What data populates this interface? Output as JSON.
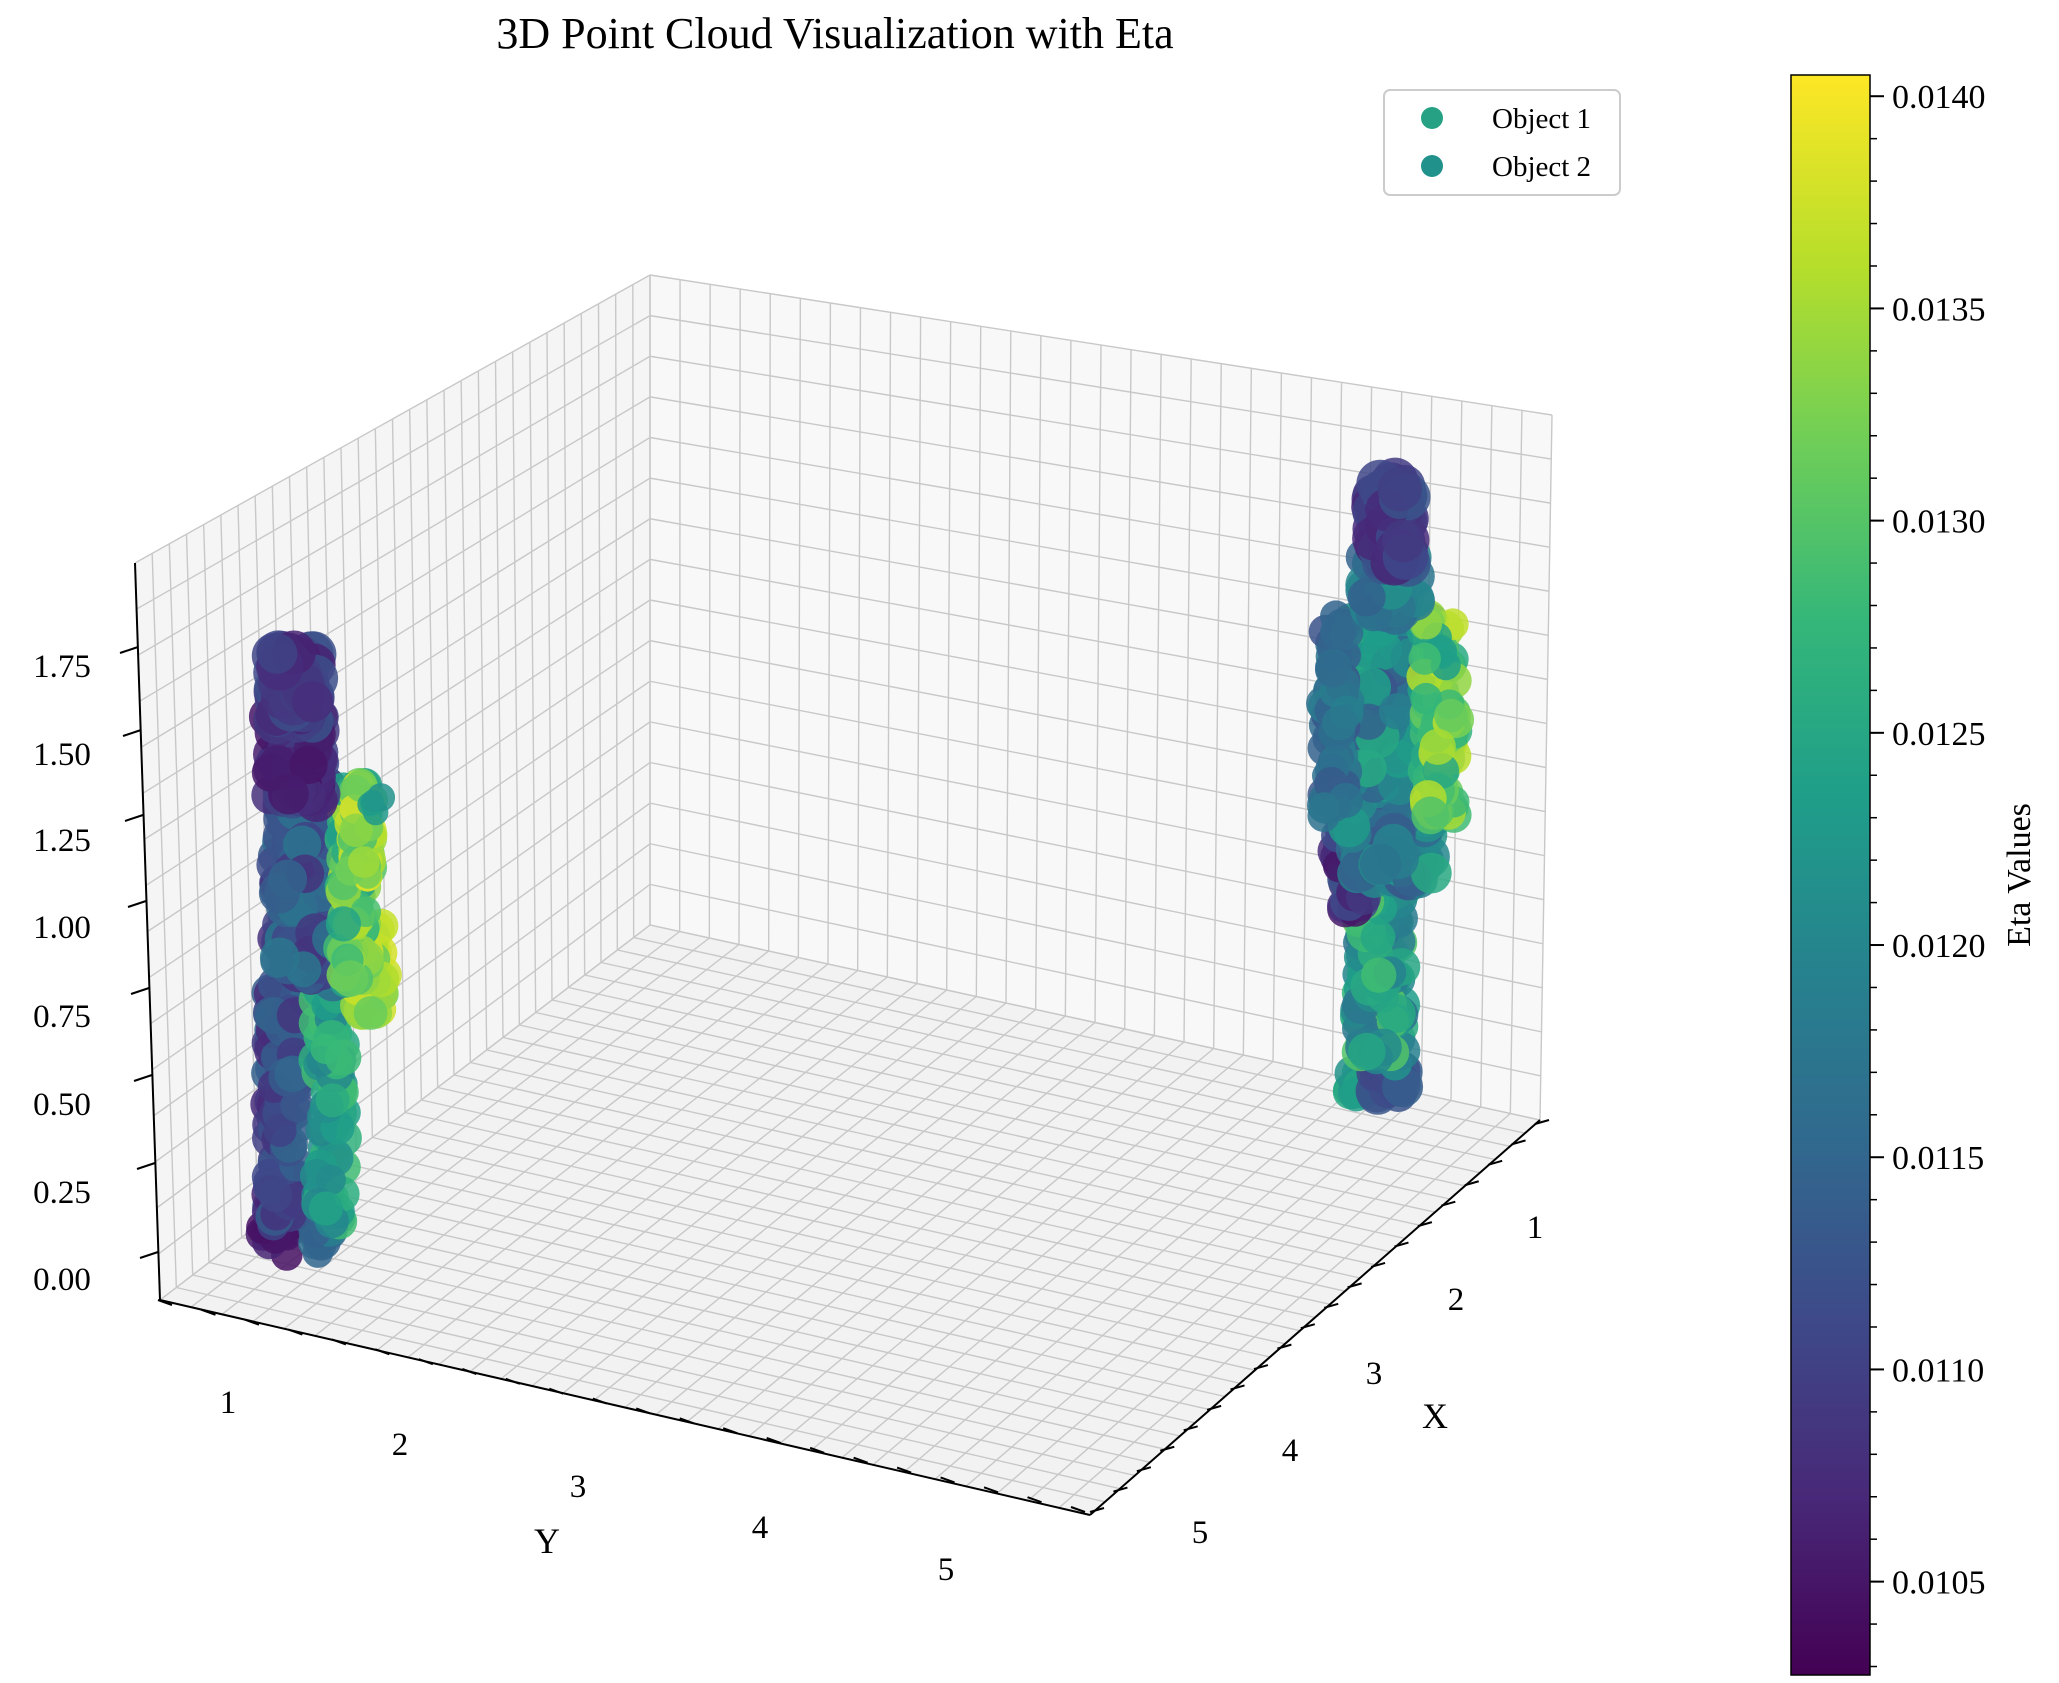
{
  "chart_data": {
    "type": "scatter",
    "projection": "3d",
    "title": "3D Point Cloud Visualization with Eta",
    "xlabel": "X",
    "ylabel": "Y",
    "zlabel": "",
    "x_ticks": [
      "1",
      "2",
      "3",
      "4",
      "5"
    ],
    "y_ticks": [
      "1",
      "2",
      "3",
      "4",
      "5"
    ],
    "z_ticks": [
      "0.00",
      "0.25",
      "0.50",
      "0.75",
      "1.00",
      "1.25",
      "1.50",
      "1.75"
    ],
    "xlim": [
      0.5,
      5.3
    ],
    "ylim": [
      0.5,
      5.5
    ],
    "zlim": [
      -0.05,
      2.0
    ],
    "grid": true,
    "legend_position": "top-right",
    "legend": [
      {
        "name": "Object 1",
        "color": "#26a184"
      },
      {
        "name": "Object 2",
        "color": "#21918c"
      }
    ],
    "colormap": "viridis",
    "colorbar": {
      "label": "Eta Values",
      "range": [
        0.01028,
        0.01405
      ],
      "ticks": [
        "0.0105",
        "0.0110",
        "0.0115",
        "0.0120",
        "0.0125",
        "0.0130",
        "0.0135",
        "0.0140"
      ]
    },
    "series": [
      {
        "name": "Object 1",
        "approx_location": {
          "x": 0.6,
          "y": 1.0
        },
        "height": 1.8,
        "eta_range": [
          0.0103,
          0.0138
        ]
      },
      {
        "name": "Object 2",
        "approx_location": {
          "x": 1.0,
          "y": 5.2
        },
        "height": 1.85,
        "eta_range": [
          0.0105,
          0.0137
        ]
      }
    ]
  }
}
